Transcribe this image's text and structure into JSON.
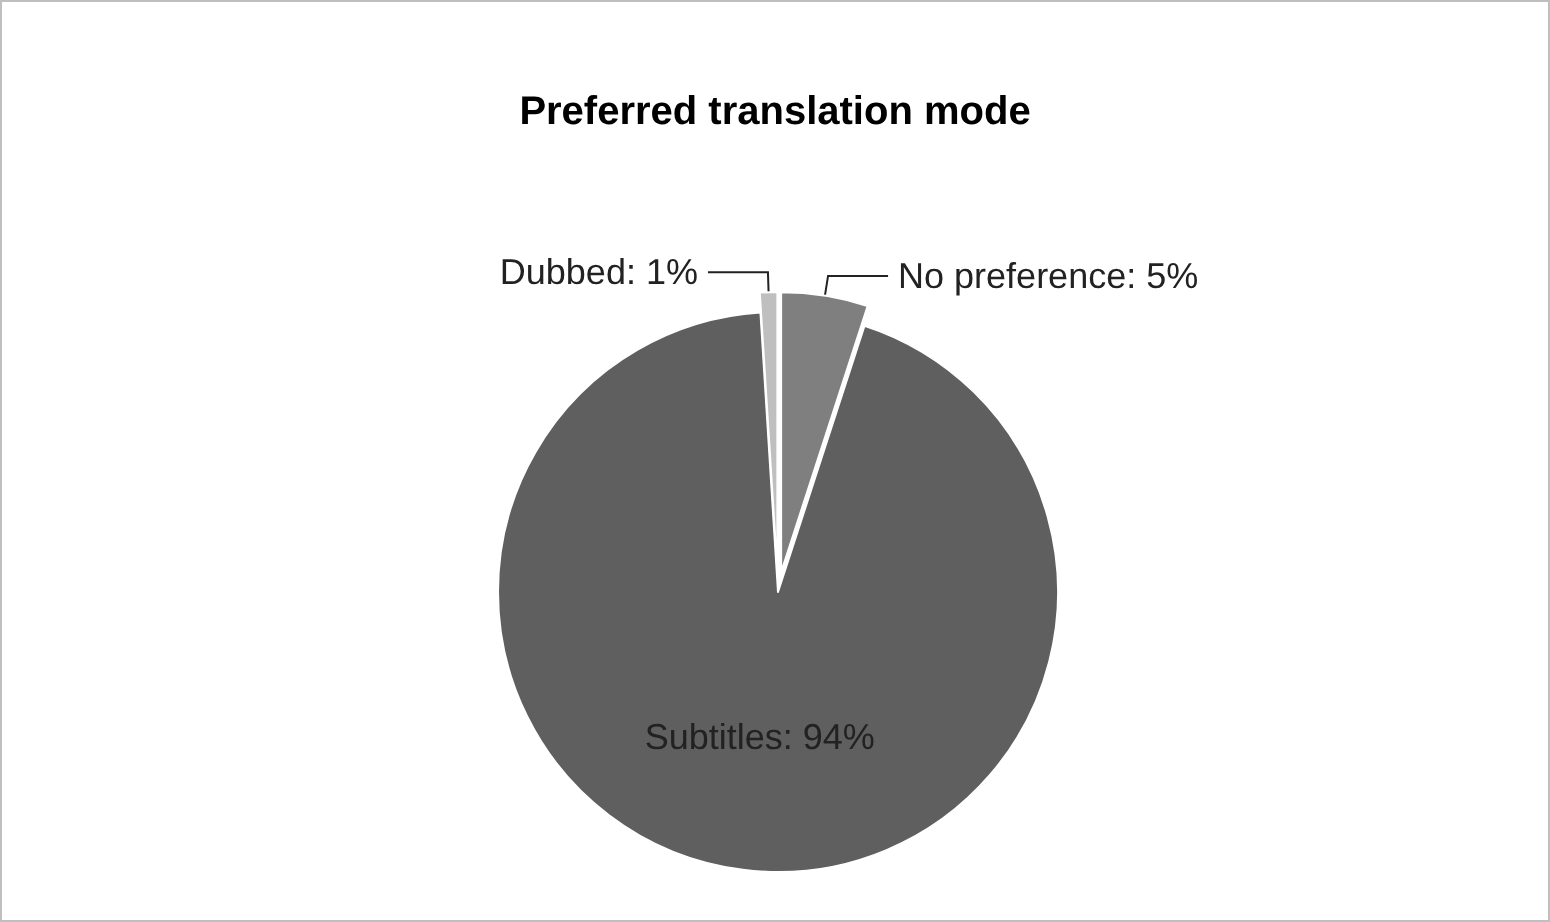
{
  "chart_data": {
    "type": "pie",
    "title": "Preferred translation mode",
    "categories": [
      "No preference",
      "Subtitles",
      "Dubbed"
    ],
    "values": [
      5,
      94,
      1
    ],
    "value_labels": [
      "5%",
      "94%",
      "1%"
    ],
    "colors": [
      "#7f7f7f",
      "#5f5f5f",
      "#bfbfbf"
    ],
    "legend": false
  }
}
